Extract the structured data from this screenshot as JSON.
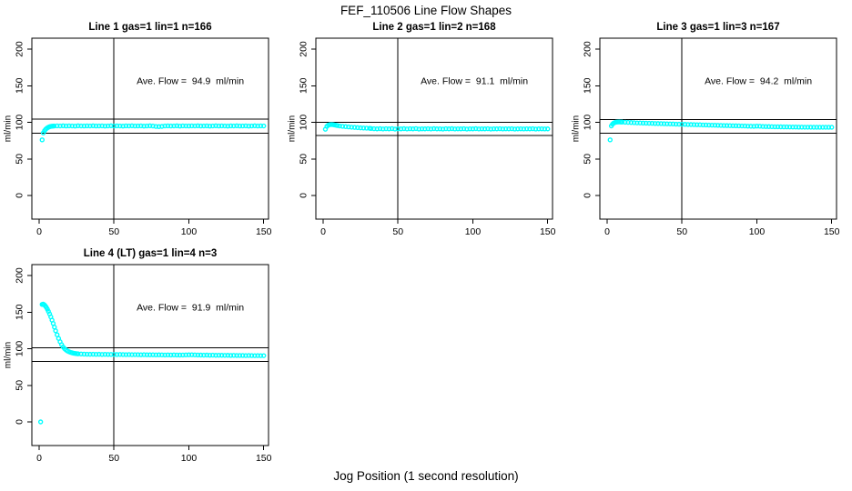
{
  "figure": {
    "title": "FEF_110506  Line Flow Shapes",
    "xlabel": "Jog Position (1 second resolution)"
  },
  "colors": {
    "series": "#00ffff",
    "axis": "#000000",
    "background": "#ffffff"
  },
  "chart_data": [
    {
      "type": "scatter",
      "title": "Line 1 gas=1 lin=1 n=166",
      "annotation": "Ave. Flow =  94.9  ml/min",
      "ave_flow_ml_min": 94.9,
      "ylabel": "ml/min",
      "xlim": [
        0,
        150
      ],
      "ylim": [
        0,
        200
      ],
      "xticks": [
        0,
        50,
        100,
        150
      ],
      "yticks": [
        0,
        50,
        100,
        150,
        200
      ],
      "vline_x": 50,
      "ref_lines": [
        104.4,
        85.4
      ],
      "annotation_pos": [
        101,
        152
      ],
      "grid": false,
      "points": [
        [
          2,
          76
        ],
        [
          2.8,
          85.5
        ],
        [
          3.6,
          88.5
        ],
        [
          4.4,
          90.5
        ],
        [
          5.2,
          92
        ],
        [
          6,
          93
        ],
        [
          6.8,
          93.8
        ],
        [
          7.6,
          94.3
        ],
        [
          8.4,
          94.6
        ],
        [
          9.2,
          94.8
        ],
        [
          10,
          94.9
        ],
        [
          12,
          95.1
        ],
        [
          14,
          95.0
        ],
        [
          16,
          95.2
        ],
        [
          18,
          94.9
        ],
        [
          20,
          95.1
        ],
        [
          22,
          95.0
        ],
        [
          24,
          94.8
        ],
        [
          26,
          95.2
        ],
        [
          28,
          95.0
        ],
        [
          30,
          94.9
        ],
        [
          32,
          95.1
        ],
        [
          34,
          95.0
        ],
        [
          36,
          95.2
        ],
        [
          38,
          94.9
        ],
        [
          40,
          95.0
        ],
        [
          42,
          95.1
        ],
        [
          44,
          94.8
        ],
        [
          46,
          95.0
        ],
        [
          48,
          95.2
        ],
        [
          50,
          94.9
        ],
        [
          52,
          95.1
        ],
        [
          54,
          95.0
        ],
        [
          56,
          94.8
        ],
        [
          58,
          95.1
        ],
        [
          60,
          95.0
        ],
        [
          62,
          95.2
        ],
        [
          64,
          94.9
        ],
        [
          66,
          95.0
        ],
        [
          68,
          95.1
        ],
        [
          70,
          94.8
        ],
        [
          72,
          95.0
        ],
        [
          74,
          95.2
        ],
        [
          76,
          94.9
        ],
        [
          78,
          94.3
        ],
        [
          80,
          94.1
        ],
        [
          82,
          94.4
        ],
        [
          84,
          95.0
        ],
        [
          86,
          95.1
        ],
        [
          88,
          94.9
        ],
        [
          90,
          95.0
        ],
        [
          92,
          95.2
        ],
        [
          94,
          94.8
        ],
        [
          96,
          95.1
        ],
        [
          98,
          95.0
        ],
        [
          100,
          94.9
        ],
        [
          102,
          95.1
        ],
        [
          104,
          95.0
        ],
        [
          106,
          95.2
        ],
        [
          108,
          94.9
        ],
        [
          110,
          95.0
        ],
        [
          112,
          95.1
        ],
        [
          114,
          94.8
        ],
        [
          116,
          95.0
        ],
        [
          118,
          95.2
        ],
        [
          120,
          94.9
        ],
        [
          122,
          95.1
        ],
        [
          124,
          95.0
        ],
        [
          126,
          94.8
        ],
        [
          128,
          95.1
        ],
        [
          130,
          95.0
        ],
        [
          132,
          95.2
        ],
        [
          134,
          94.9
        ],
        [
          136,
          95.0
        ],
        [
          138,
          95.1
        ],
        [
          140,
          94.8
        ],
        [
          142,
          95.0
        ],
        [
          144,
          95.2
        ],
        [
          146,
          94.9
        ],
        [
          148,
          95.1
        ],
        [
          150,
          95.0
        ]
      ]
    },
    {
      "type": "scatter",
      "title": "Line 2 gas=1 lin=2 n=168",
      "annotation": "Ave. Flow =  91.1  ml/min",
      "ave_flow_ml_min": 91.1,
      "ylabel": "ml/min",
      "xlim": [
        0,
        150
      ],
      "ylim": [
        0,
        200
      ],
      "xticks": [
        0,
        50,
        100,
        150
      ],
      "yticks": [
        0,
        50,
        100,
        150,
        200
      ],
      "vline_x": 50,
      "ref_lines": [
        100.2,
        82.0
      ],
      "annotation_pos": [
        101,
        152
      ],
      "grid": false,
      "points": [
        [
          1.5,
          90.5
        ],
        [
          2.5,
          94.5
        ],
        [
          3.5,
          96.2
        ],
        [
          4.5,
          96.8
        ],
        [
          5.5,
          97
        ],
        [
          6.5,
          96.8
        ],
        [
          7.5,
          96.4
        ],
        [
          8.5,
          96
        ],
        [
          9.5,
          95.6
        ],
        [
          11,
          95.0
        ],
        [
          13,
          94.5
        ],
        [
          15,
          94.1
        ],
        [
          17,
          93.7
        ],
        [
          19,
          93.3
        ],
        [
          21,
          93.0
        ],
        [
          23,
          92.7
        ],
        [
          25,
          92.4
        ],
        [
          27,
          92.2
        ],
        [
          29,
          92.0
        ],
        [
          31,
          91.8
        ],
        [
          32,
          91.5
        ],
        [
          34,
          91.2
        ],
        [
          36,
          91.0
        ],
        [
          38,
          91.3
        ],
        [
          40,
          90.9
        ],
        [
          42,
          91.2
        ],
        [
          44,
          91.0
        ],
        [
          46,
          91.4
        ],
        [
          48,
          90.8
        ],
        [
          50,
          91.1
        ],
        [
          52,
          91.0
        ],
        [
          54,
          91.3
        ],
        [
          56,
          90.9
        ],
        [
          58,
          91.2
        ],
        [
          60,
          91.0
        ],
        [
          62,
          91.4
        ],
        [
          64,
          90.8
        ],
        [
          66,
          91.1
        ],
        [
          68,
          91.0
        ],
        [
          70,
          91.2
        ],
        [
          72,
          90.9
        ],
        [
          74,
          91.3
        ],
        [
          76,
          91.0
        ],
        [
          78,
          91.1
        ],
        [
          80,
          90.8
        ],
        [
          82,
          91.2
        ],
        [
          84,
          91.0
        ],
        [
          86,
          91.3
        ],
        [
          88,
          90.9
        ],
        [
          90,
          91.1
        ],
        [
          92,
          91.0
        ],
        [
          94,
          91.2
        ],
        [
          96,
          90.8
        ],
        [
          98,
          91.1
        ],
        [
          100,
          91.0
        ],
        [
          102,
          91.3
        ],
        [
          104,
          90.9
        ],
        [
          106,
          91.1
        ],
        [
          108,
          91.0
        ],
        [
          110,
          91.2
        ],
        [
          112,
          90.8
        ],
        [
          114,
          91.1
        ],
        [
          116,
          91.0
        ],
        [
          118,
          91.2
        ],
        [
          120,
          90.9
        ],
        [
          122,
          91.1
        ],
        [
          124,
          91.0
        ],
        [
          126,
          91.2
        ],
        [
          128,
          90.8
        ],
        [
          130,
          91.0
        ],
        [
          132,
          91.1
        ],
        [
          134,
          90.9
        ],
        [
          136,
          91.1
        ],
        [
          138,
          91.0
        ],
        [
          140,
          91.2
        ],
        [
          142,
          90.8
        ],
        [
          144,
          91.0
        ],
        [
          146,
          91.1
        ],
        [
          148,
          90.9
        ],
        [
          150,
          91.0
        ]
      ]
    },
    {
      "type": "scatter",
      "title": "Line 3 gas=1 lin=3 n=167",
      "annotation": "Ave. Flow =  94.2  ml/min",
      "ave_flow_ml_min": 94.2,
      "ylabel": "ml/min",
      "xlim": [
        0,
        150
      ],
      "ylim": [
        0,
        200
      ],
      "xticks": [
        0,
        50,
        100,
        150
      ],
      "yticks": [
        0,
        50,
        100,
        150,
        200
      ],
      "vline_x": 50,
      "ref_lines": [
        103.6,
        84.8
      ],
      "annotation_pos": [
        101,
        152
      ],
      "grid": false,
      "points": [
        [
          2,
          76
        ],
        [
          2.8,
          95
        ],
        [
          3.6,
          97.5
        ],
        [
          4.4,
          99
        ],
        [
          5.2,
          99.8
        ],
        [
          6,
          100.2
        ],
        [
          7,
          100.4
        ],
        [
          8,
          100.5
        ],
        [
          9,
          100.4
        ],
        [
          10,
          100.3
        ],
        [
          12,
          100.1
        ],
        [
          14,
          99.9
        ],
        [
          16,
          99.7
        ],
        [
          18,
          99.4
        ],
        [
          20,
          99.2
        ],
        [
          22,
          99.1
        ],
        [
          24,
          98.9
        ],
        [
          26,
          98.8
        ],
        [
          28,
          98.7
        ],
        [
          30,
          98.6
        ],
        [
          32,
          98.4
        ],
        [
          34,
          98.3
        ],
        [
          36,
          98.2
        ],
        [
          38,
          98.0
        ],
        [
          40,
          97.9
        ],
        [
          42,
          97.8
        ],
        [
          44,
          97.7
        ],
        [
          46,
          97.5
        ],
        [
          48,
          97.4
        ],
        [
          50,
          97.3
        ],
        [
          52,
          97.2
        ],
        [
          54,
          97.0
        ],
        [
          56,
          96.9
        ],
        [
          58,
          96.8
        ],
        [
          60,
          96.7
        ],
        [
          62,
          96.6
        ],
        [
          64,
          96.4
        ],
        [
          66,
          96.3
        ],
        [
          68,
          96.2
        ],
        [
          70,
          96.1
        ],
        [
          72,
          96.0
        ],
        [
          74,
          95.9
        ],
        [
          76,
          95.7
        ],
        [
          78,
          95.6
        ],
        [
          80,
          95.5
        ],
        [
          82,
          95.4
        ],
        [
          84,
          95.3
        ],
        [
          86,
          95.2
        ],
        [
          88,
          95.1
        ],
        [
          90,
          95.0
        ],
        [
          92,
          94.9
        ],
        [
          94,
          94.7
        ],
        [
          96,
          94.6
        ],
        [
          98,
          94.5
        ],
        [
          100,
          94.8
        ],
        [
          102,
          94.6
        ],
        [
          104,
          94.3
        ],
        [
          106,
          94.2
        ],
        [
          108,
          94.1
        ],
        [
          110,
          94.0
        ],
        [
          112,
          93.9
        ],
        [
          114,
          93.9
        ],
        [
          116,
          93.8
        ],
        [
          118,
          93.7
        ],
        [
          120,
          93.7
        ],
        [
          122,
          93.6
        ],
        [
          124,
          93.5
        ],
        [
          126,
          93.5
        ],
        [
          128,
          93.4
        ],
        [
          130,
          93.4
        ],
        [
          132,
          93.3
        ],
        [
          134,
          93.3
        ],
        [
          136,
          93.3
        ],
        [
          138,
          93.2
        ],
        [
          140,
          93.2
        ],
        [
          142,
          93.2
        ],
        [
          144,
          93.2
        ],
        [
          146,
          93.2
        ],
        [
          148,
          93.2
        ],
        [
          150,
          93.2
        ]
      ]
    },
    {
      "type": "scatter",
      "title": "Line 4 (LT) gas=1 lin=4 n=3",
      "annotation": "Ave. Flow =  91.9  ml/min",
      "ave_flow_ml_min": 91.9,
      "ylabel": "ml/min",
      "xlim": [
        0,
        150
      ],
      "ylim": [
        0,
        200
      ],
      "xticks": [
        0,
        50,
        100,
        150
      ],
      "yticks": [
        0,
        50,
        100,
        150,
        200
      ],
      "vline_x": 50,
      "ref_lines": [
        101.1,
        82.7
      ],
      "annotation_pos": [
        101,
        152
      ],
      "grid": false,
      "points": [
        [
          1,
          0
        ],
        [
          2,
          160.5
        ],
        [
          2.7,
          161
        ],
        [
          3.4,
          160
        ],
        [
          4.1,
          158.5
        ],
        [
          4.8,
          156.5
        ],
        [
          5.5,
          154
        ],
        [
          6.2,
          151
        ],
        [
          7,
          147.5
        ],
        [
          7.8,
          143.5
        ],
        [
          8.6,
          139
        ],
        [
          9.4,
          134.5
        ],
        [
          10.2,
          129.5
        ],
        [
          11,
          124.5
        ],
        [
          12,
          119
        ],
        [
          13,
          114
        ],
        [
          14,
          109.5
        ],
        [
          15,
          105.5
        ],
        [
          16,
          102.3
        ],
        [
          17,
          100
        ],
        [
          18,
          98.2
        ],
        [
          19,
          96.8
        ],
        [
          20,
          95.8
        ],
        [
          21,
          95
        ],
        [
          22,
          94.4
        ],
        [
          23,
          93.9
        ],
        [
          24,
          93.5
        ],
        [
          25,
          93.2
        ],
        [
          26,
          93
        ],
        [
          28,
          92.8
        ],
        [
          30,
          92.6
        ],
        [
          32,
          92.5
        ],
        [
          34,
          92.4
        ],
        [
          36,
          92.5
        ],
        [
          38,
          92.3
        ],
        [
          40,
          92.4
        ],
        [
          42,
          92.2
        ],
        [
          44,
          92.3
        ],
        [
          46,
          92.2
        ],
        [
          48,
          92.1
        ],
        [
          50,
          92.2
        ],
        [
          52,
          92.0
        ],
        [
          54,
          92.1
        ],
        [
          56,
          92.0
        ],
        [
          58,
          91.9
        ],
        [
          60,
          92.0
        ],
        [
          62,
          91.8
        ],
        [
          64,
          91.9
        ],
        [
          66,
          91.8
        ],
        [
          68,
          91.7
        ],
        [
          70,
          91.8
        ],
        [
          72,
          91.7
        ],
        [
          74,
          91.6
        ],
        [
          76,
          91.7
        ],
        [
          78,
          91.5
        ],
        [
          80,
          91.6
        ],
        [
          82,
          91.5
        ],
        [
          84,
          91.4
        ],
        [
          86,
          91.5
        ],
        [
          88,
          91.4
        ],
        [
          90,
          91.5
        ],
        [
          92,
          91.4
        ],
        [
          94,
          91.3
        ],
        [
          96,
          91.4
        ],
        [
          98,
          91.5
        ],
        [
          100,
          91.6
        ],
        [
          102,
          91.7
        ],
        [
          104,
          91.5
        ],
        [
          106,
          91.4
        ],
        [
          108,
          91.3
        ],
        [
          110,
          91.2
        ],
        [
          112,
          91.3
        ],
        [
          114,
          91.1
        ],
        [
          116,
          91.2
        ],
        [
          118,
          91.0
        ],
        [
          120,
          91.1
        ],
        [
          122,
          91.0
        ],
        [
          124,
          90.9
        ],
        [
          126,
          91.0
        ],
        [
          128,
          90.8
        ],
        [
          130,
          90.9
        ],
        [
          132,
          90.8
        ],
        [
          134,
          90.7
        ],
        [
          136,
          90.8
        ],
        [
          138,
          90.6
        ],
        [
          140,
          90.7
        ],
        [
          142,
          90.6
        ],
        [
          144,
          90.5
        ],
        [
          146,
          90.6
        ],
        [
          148,
          90.5
        ],
        [
          150,
          90.5
        ]
      ]
    }
  ]
}
